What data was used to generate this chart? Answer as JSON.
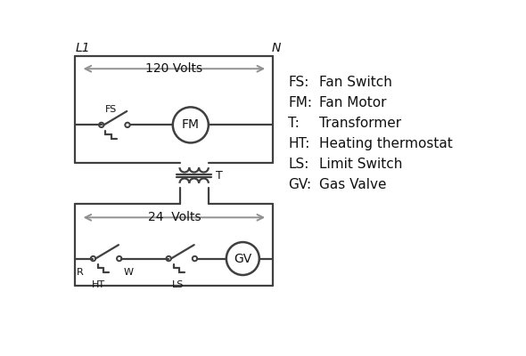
{
  "background_color": "#ffffff",
  "line_color": "#404040",
  "arrow_color": "#909090",
  "text_color": "#111111",
  "legend_items": [
    [
      "FS:",
      "Fan Switch"
    ],
    [
      "FM:",
      "Fan Motor"
    ],
    [
      "T:",
      "Transformer"
    ],
    [
      "HT:",
      "Heating thermostat"
    ],
    [
      "LS:",
      "Limit Switch"
    ],
    [
      "GV:",
      "Gas Valve"
    ]
  ],
  "L1_label": "L1",
  "N_label": "N",
  "volts120_label": "120 Volts",
  "volts24_label": "24  Volts",
  "FS_label": "FS",
  "FM_label": "FM",
  "T_label": "T",
  "R_label": "R",
  "W_label": "W",
  "HT_label": "HT",
  "LS_label": "LS",
  "GV_label": "GV"
}
